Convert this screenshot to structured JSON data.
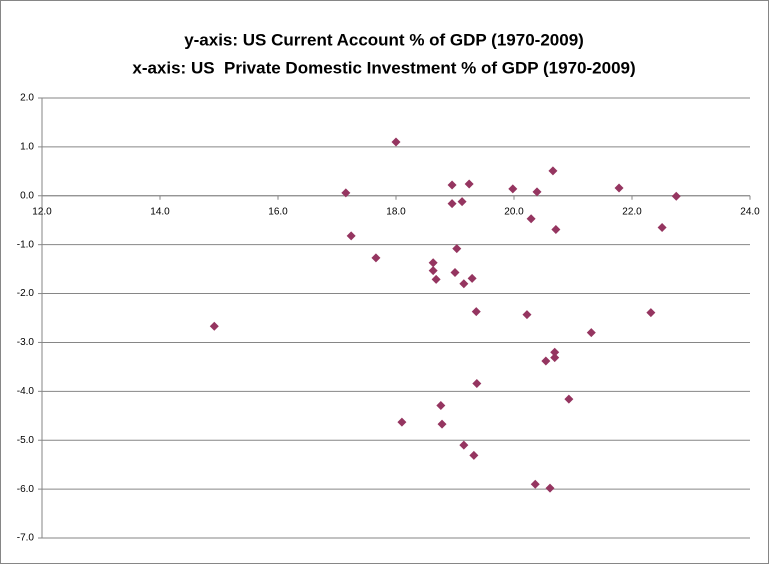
{
  "chart_data": {
    "type": "scatter",
    "title": "y-axis: US Current Account % of GDP (1970-2009)",
    "subtitle": "x-axis: US  Private Domestic Investment % of GDP (1970-2009)",
    "color": "#953560",
    "grid": true,
    "xlim": [
      12,
      24
    ],
    "ylim": [
      -7,
      2
    ],
    "xticks": [
      {
        "value": 12,
        "label": "12.0"
      },
      {
        "value": 14,
        "label": "14.0"
      },
      {
        "value": 16,
        "label": "16.0"
      },
      {
        "value": 18,
        "label": "18.0"
      },
      {
        "value": 20,
        "label": "20.0"
      },
      {
        "value": 22,
        "label": "22.0"
      },
      {
        "value": 24,
        "label": "24.0"
      }
    ],
    "yticks": [
      {
        "value": 2,
        "label": "2.0"
      },
      {
        "value": 1,
        "label": "1.0"
      },
      {
        "value": 0,
        "label": "0.0"
      },
      {
        "value": -1,
        "label": "-1.0"
      },
      {
        "value": -2,
        "label": "-2.0"
      },
      {
        "value": -3,
        "label": "-3.0"
      },
      {
        "value": -4,
        "label": "-4.0"
      },
      {
        "value": -5,
        "label": "-5.0"
      },
      {
        "value": -6,
        "label": "-6.0"
      },
      {
        "value": -7,
        "label": "-7.0"
      }
    ],
    "x": [
      14.92,
      17.15,
      17.24,
      17.66,
      18.0,
      18.1,
      18.63,
      18.63,
      18.68,
      18.76,
      18.78,
      18.95,
      18.95,
      19.0,
      19.03,
      19.12,
      19.15,
      19.15,
      19.24,
      19.29,
      19.32,
      19.36,
      19.37,
      19.98,
      20.22,
      20.29,
      20.36,
      20.39,
      20.54,
      20.61,
      20.66,
      20.69,
      20.69,
      20.71,
      20.93,
      21.31,
      21.78,
      22.32,
      22.51,
      22.75
    ],
    "values": [
      -2.67,
      0.06,
      -0.82,
      -1.27,
      1.1,
      -4.63,
      -1.37,
      -1.53,
      -1.71,
      -4.29,
      -4.67,
      0.22,
      -0.16,
      -1.57,
      -1.08,
      -0.12,
      -1.8,
      -5.1,
      0.24,
      -1.69,
      -5.31,
      -2.37,
      -3.84,
      0.14,
      -2.43,
      -0.47,
      -5.9,
      0.08,
      -3.38,
      -5.98,
      0.51,
      -3.2,
      -3.31,
      -0.69,
      -4.16,
      -2.8,
      0.16,
      -2.39,
      -0.65,
      -0.01
    ]
  }
}
